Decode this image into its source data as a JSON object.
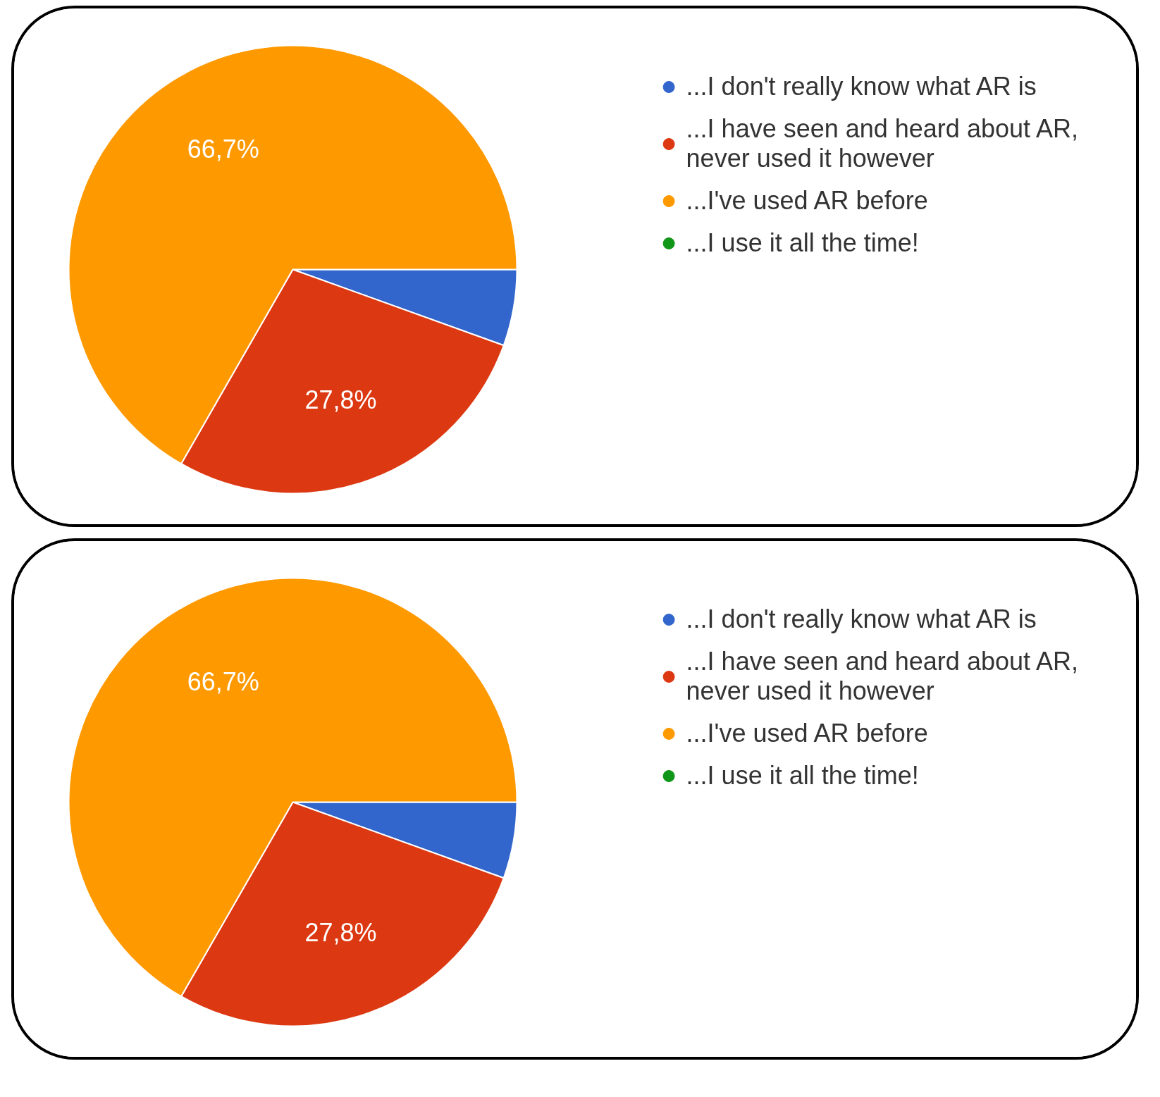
{
  "chart_data": [
    {
      "type": "pie",
      "categories": [
        "...I don't really know what AR is",
        "...I have seen and heard about AR, never used it however",
        "...I've used AR before",
        "...I use it all the time!"
      ],
      "values": [
        5.5,
        27.8,
        66.7,
        0
      ],
      "colors": [
        "#3366cc",
        "#dc3912",
        "#ff9900",
        "#109618"
      ],
      "value_labels": [
        null,
        "27,8%",
        "66,7%",
        null
      ],
      "legend": "top right"
    },
    {
      "type": "pie",
      "categories": [
        "...I don't really know what AR is",
        "...I have seen and heard about AR, never used it however",
        "...I've used AR before",
        "...I use it all the time!"
      ],
      "values": [
        5.5,
        27.8,
        66.7,
        0
      ],
      "colors": [
        "#3366cc",
        "#dc3912",
        "#ff9900",
        "#109618"
      ],
      "value_labels": [
        null,
        "27,8%",
        "66,7%",
        null
      ],
      "legend": "top right"
    }
  ]
}
